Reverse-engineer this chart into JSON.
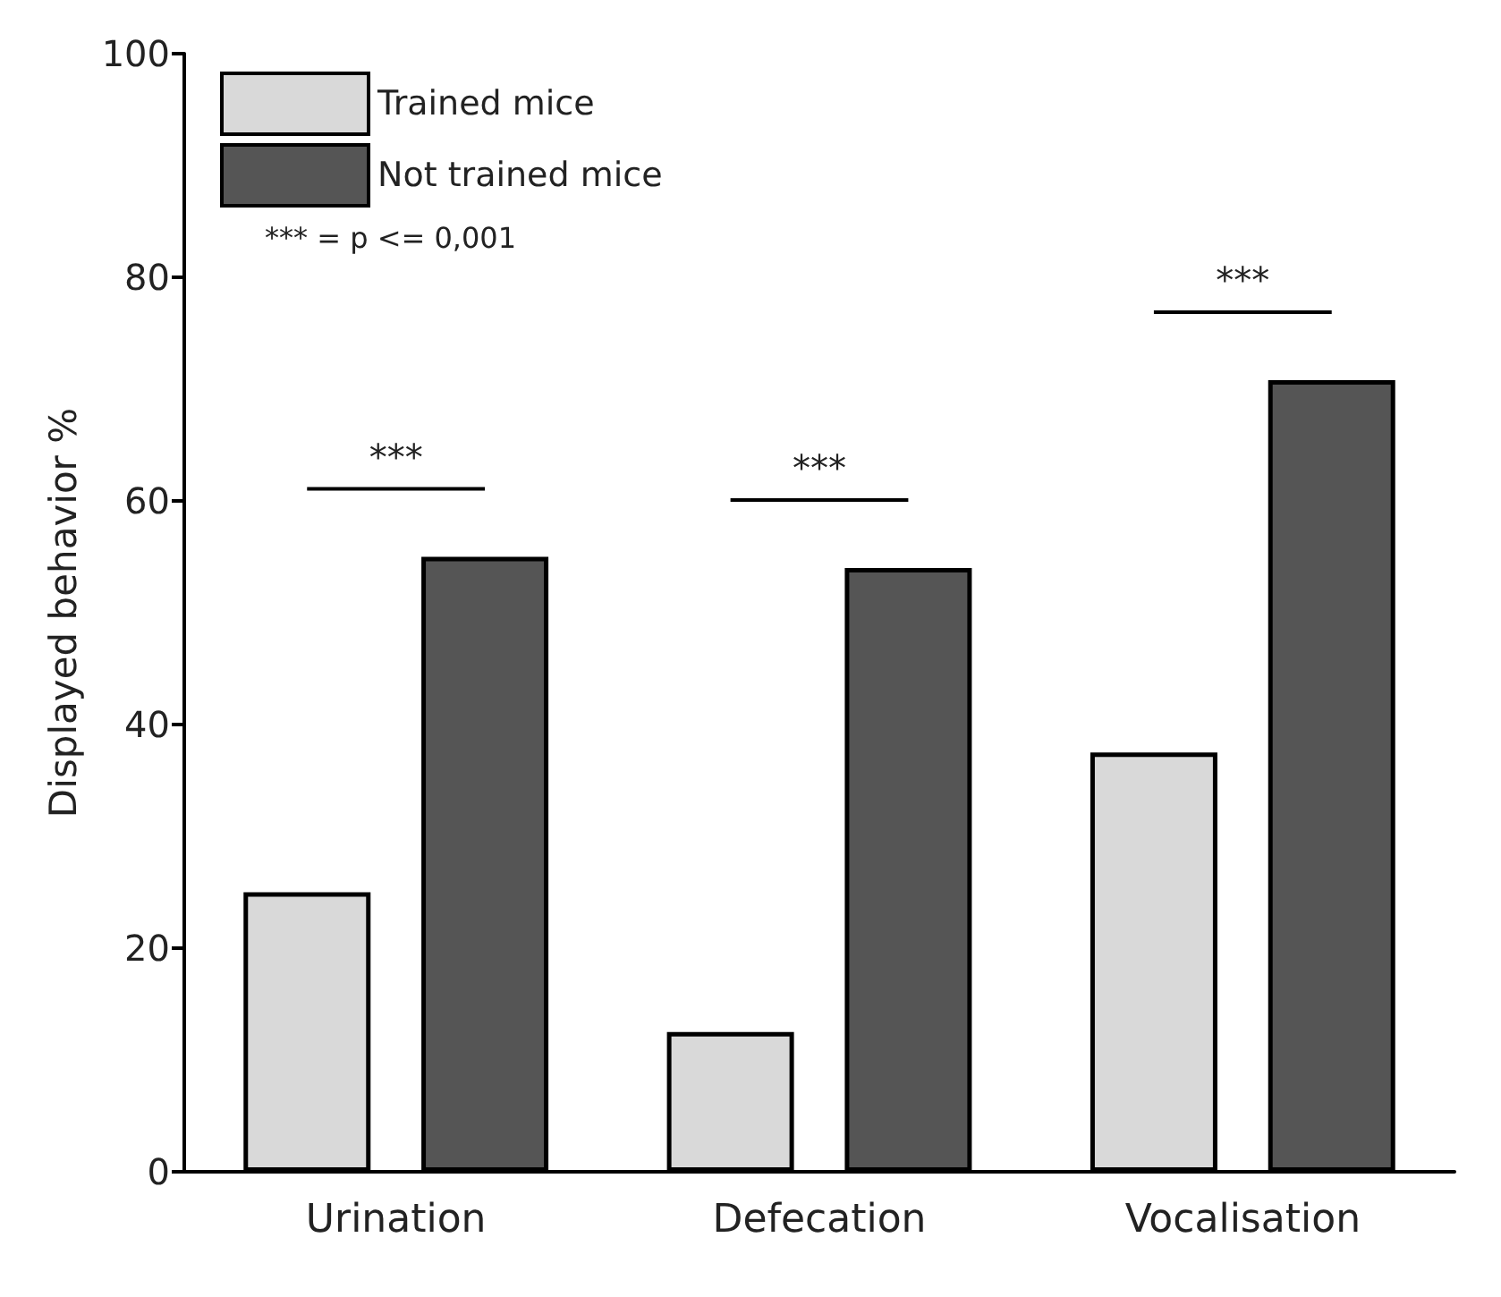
{
  "chart_data": {
    "type": "bar",
    "ylabel": "Displayed behavior %",
    "categories": [
      "Urination",
      "Defecation",
      "Vocalisation"
    ],
    "series": [
      {
        "name": "Trained mice",
        "color": "#d9d9d9",
        "values": [
          25,
          12.5,
          37.5
        ]
      },
      {
        "name": "Not trained mice",
        "color": "#555555",
        "values": [
          55,
          54,
          70.8
        ]
      }
    ],
    "ylim": [
      0,
      100
    ],
    "yticks": [
      0,
      20,
      40,
      60,
      80,
      100
    ],
    "grid": false,
    "legend": "top left",
    "annotations": [
      "*** = p <= 0,001",
      "***",
      "***",
      "***"
    ]
  }
}
